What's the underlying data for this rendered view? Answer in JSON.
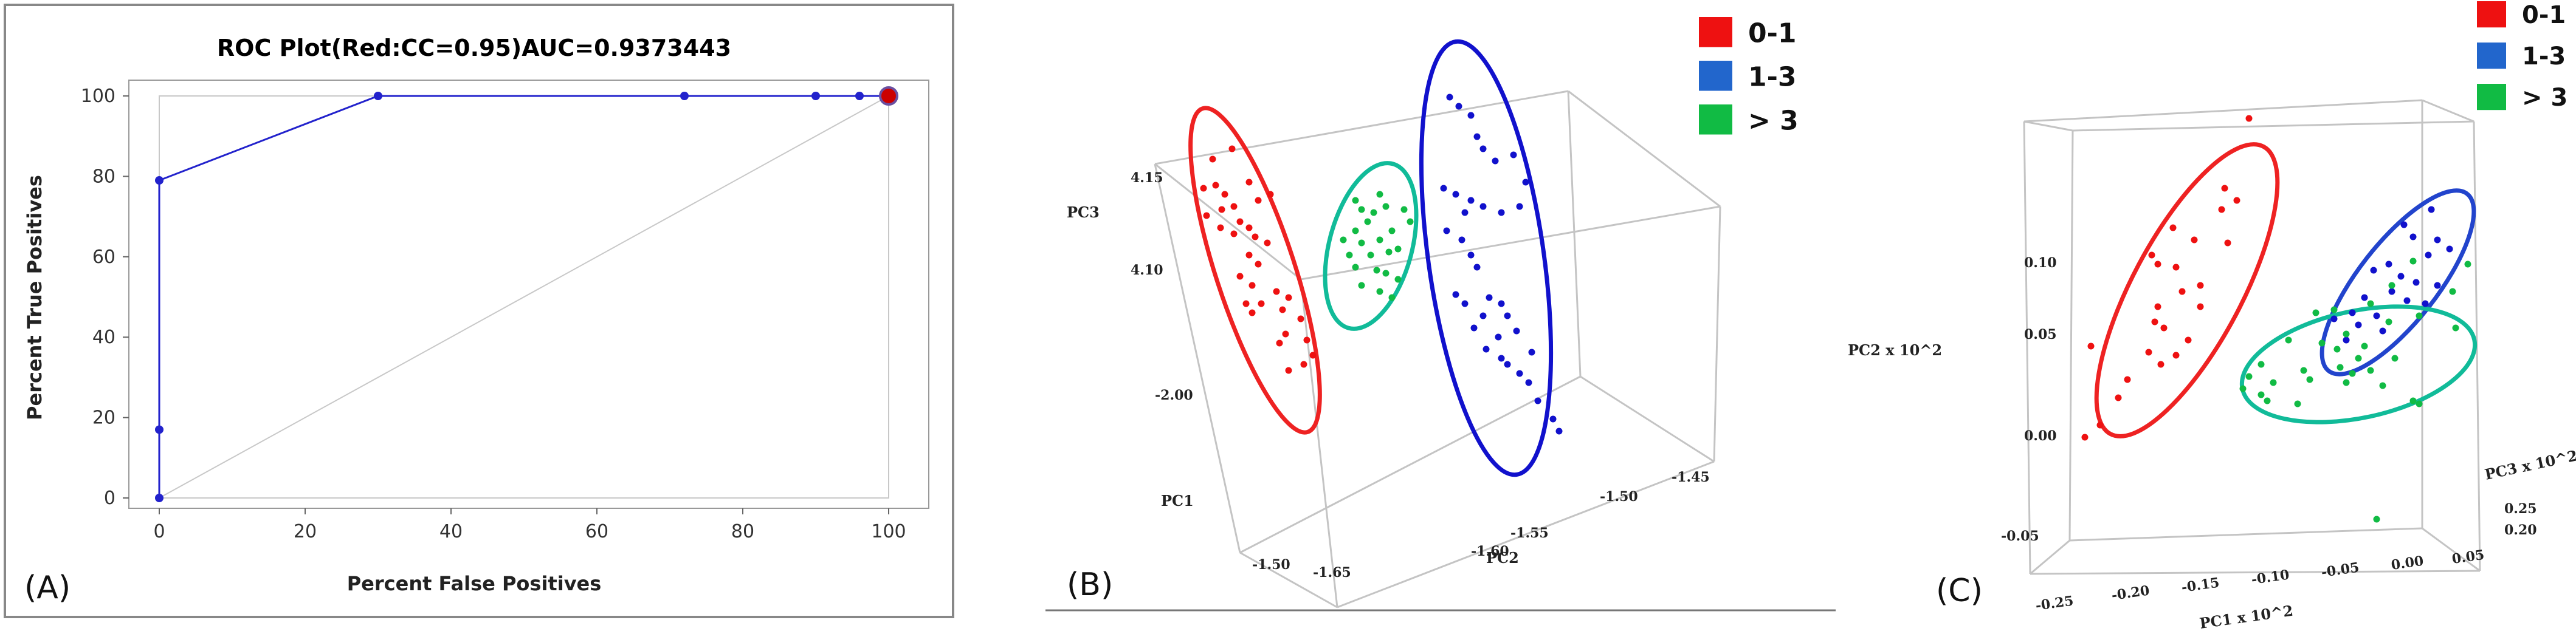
{
  "chart_data": [
    {
      "type": "line",
      "panel_label": "(A)",
      "title": "ROC Plot(Red:CC=0.95)AUC=0.9373443",
      "xlabel": "Percent False Positives",
      "ylabel": "Percent True Positives",
      "xlim": [
        0,
        100
      ],
      "ylim": [
        0,
        100
      ],
      "xticks": [
        "0",
        "20",
        "40",
        "60",
        "80",
        "100"
      ],
      "yticks": [
        "0",
        "20",
        "40",
        "60",
        "80",
        "100"
      ],
      "series": [
        {
          "x": [
            0,
            0,
            0,
            30,
            72,
            90,
            96,
            100
          ],
          "y": [
            0,
            17,
            79,
            100,
            100,
            100,
            100,
            100
          ],
          "color": "#2222cc"
        }
      ],
      "highlight_point": {
        "x": 100,
        "y": 100,
        "color": "#cc0000"
      },
      "diagonal": true
    },
    {
      "type": "scatter",
      "panel_label": "(B)",
      "projection": "3d",
      "axis_labels": {
        "x": "PC1",
        "y": "PC2",
        "z": "PC3"
      },
      "pc1_ticks": [
        "-2.00",
        "-1.50"
      ],
      "pc2_ticks": [
        "-1.65",
        "-1.60",
        "-1.55",
        "-1.50",
        "-1.45"
      ],
      "pc3_ticks": [
        "4.15",
        "4.10"
      ],
      "legend": [
        {
          "label": "0-1",
          "color": "#ee1111"
        },
        {
          "label": "1-3",
          "color": "#2266cc"
        },
        {
          "label": "> 3",
          "color": "#11bb44"
        }
      ],
      "groups": [
        {
          "label": "0-1",
          "color": "#ee1111",
          "points": [
            [
              1995,
              262
            ],
            [
              2027,
              245
            ],
            [
              1980,
              310
            ],
            [
              2000,
              305
            ],
            [
              2015,
              320
            ],
            [
              2055,
              300
            ],
            [
              1985,
              355
            ],
            [
              2010,
              345
            ],
            [
              2030,
              340
            ],
            [
              2070,
              330
            ],
            [
              2090,
              320
            ],
            [
              2040,
              365
            ],
            [
              2055,
              375
            ],
            [
              2008,
              375
            ],
            [
              2030,
              385
            ],
            [
              2065,
              390
            ],
            [
              2085,
              400
            ],
            [
              2055,
              420
            ],
            [
              2070,
              435
            ],
            [
              2040,
              455
            ],
            [
              2060,
              470
            ],
            [
              2100,
              480
            ],
            [
              2120,
              490
            ],
            [
              2075,
              500
            ],
            [
              2110,
              510
            ],
            [
              2050,
              500
            ],
            [
              2060,
              515
            ],
            [
              2140,
              525
            ],
            [
              2115,
              550
            ],
            [
              2150,
              560
            ],
            [
              2105,
              565
            ],
            [
              2160,
              585
            ],
            [
              2145,
              600
            ],
            [
              2120,
              610
            ]
          ]
        },
        {
          "label": "1-3",
          "color": "#1111cc",
          "points": [
            [
              2385,
              160
            ],
            [
              2400,
              175
            ],
            [
              2420,
              190
            ],
            [
              2430,
              225
            ],
            [
              2440,
              245
            ],
            [
              2490,
              255
            ],
            [
              2460,
              265
            ],
            [
              2510,
              300
            ],
            [
              2395,
              320
            ],
            [
              2375,
              310
            ],
            [
              2420,
              330
            ],
            [
              2410,
              350
            ],
            [
              2440,
              340
            ],
            [
              2470,
              350
            ],
            [
              2500,
              340
            ],
            [
              2380,
              380
            ],
            [
              2405,
              395
            ],
            [
              2420,
              420
            ],
            [
              2430,
              440
            ],
            [
              2395,
              485
            ],
            [
              2410,
              500
            ],
            [
              2450,
              490
            ],
            [
              2470,
              500
            ],
            [
              2480,
              520
            ],
            [
              2440,
              520
            ],
            [
              2425,
              540
            ],
            [
              2465,
              555
            ],
            [
              2495,
              545
            ],
            [
              2445,
              575
            ],
            [
              2470,
              590
            ],
            [
              2520,
              580
            ],
            [
              2480,
              600
            ],
            [
              2500,
              615
            ],
            [
              2515,
              630
            ],
            [
              2530,
              660
            ],
            [
              2555,
              690
            ],
            [
              2565,
              710
            ]
          ]
        },
        {
          "label": "> 3",
          "color": "#11bb44",
          "points": [
            [
              2230,
              330
            ],
            [
              2270,
              320
            ],
            [
              2240,
              345
            ],
            [
              2260,
              350
            ],
            [
              2280,
              340
            ],
            [
              2310,
              345
            ],
            [
              2250,
              365
            ],
            [
              2230,
              380
            ],
            [
              2290,
              380
            ],
            [
              2320,
              365
            ],
            [
              2210,
              395
            ],
            [
              2240,
              400
            ],
            [
              2270,
              395
            ],
            [
              2220,
              420
            ],
            [
              2255,
              420
            ],
            [
              2285,
              415
            ],
            [
              2300,
              410
            ],
            [
              2230,
              440
            ],
            [
              2265,
              445
            ],
            [
              2280,
              450
            ],
            [
              2300,
              460
            ],
            [
              2240,
              470
            ],
            [
              2270,
              480
            ],
            [
              2290,
              490
            ]
          ]
        }
      ]
    },
    {
      "type": "scatter",
      "panel_label": "(C)",
      "projection": "3d",
      "axis_labels": {
        "x": "PC1 x 10^2",
        "y": "PC2 x 10^2",
        "z": "PC3 x 10^2"
      },
      "pc1_ticks": [
        "-0.25",
        "-0.20",
        "-0.15",
        "-0.10",
        "-0.05",
        "0.00",
        "0.05"
      ],
      "pc2_ticks": [
        "-0.05",
        "0.00",
        "0.05",
        "0.10"
      ],
      "pc3_ticks": [
        "0.25",
        "0.20"
      ],
      "legend": [
        {
          "label": "0-1",
          "color": "#ee1111"
        },
        {
          "label": "1-3",
          "color": "#2266cc"
        },
        {
          "label": "> 3",
          "color": "#11bb44"
        }
      ],
      "groups": [
        {
          "label": "0-1",
          "color": "#ee1111",
          "points": [
            [
              3700,
              195
            ],
            [
              3660,
              310
            ],
            [
              3680,
              330
            ],
            [
              3655,
              345
            ],
            [
              3575,
              375
            ],
            [
              3610,
              395
            ],
            [
              3665,
              400
            ],
            [
              3540,
              420
            ],
            [
              3550,
              435
            ],
            [
              3580,
              440
            ],
            [
              3590,
              480
            ],
            [
              3620,
              470
            ],
            [
              3620,
              505
            ],
            [
              3550,
              505
            ],
            [
              3545,
              530
            ],
            [
              3560,
              540
            ],
            [
              3535,
              580
            ],
            [
              3500,
              625
            ],
            [
              3555,
              600
            ],
            [
              3580,
              585
            ],
            [
              3600,
              560
            ],
            [
              3485,
              655
            ],
            [
              3455,
              700
            ],
            [
              3430,
              720
            ],
            [
              3440,
              570
            ]
          ]
        },
        {
          "label": "1-3",
          "color": "#1111cc",
          "points": [
            [
              4000,
              345
            ],
            [
              3955,
              370
            ],
            [
              3970,
              390
            ],
            [
              4010,
              395
            ],
            [
              4030,
              410
            ],
            [
              3995,
              420
            ],
            [
              3930,
              435
            ],
            [
              3905,
              445
            ],
            [
              3950,
              455
            ],
            [
              3975,
              465
            ],
            [
              4010,
              470
            ],
            [
              3935,
              480
            ],
            [
              3890,
              490
            ],
            [
              3960,
              495
            ],
            [
              3990,
              500
            ],
            [
              3870,
              515
            ],
            [
              3910,
              520
            ],
            [
              3840,
              525
            ],
            [
              3880,
              535
            ],
            [
              3920,
              545
            ],
            [
              3860,
              560
            ]
          ]
        },
        {
          "label": "> 3",
          "color": "#11bb44",
          "points": [
            [
              3970,
              430
            ],
            [
              4060,
              435
            ],
            [
              3935,
              470
            ],
            [
              4035,
              480
            ],
            [
              3900,
              500
            ],
            [
              3840,
              510
            ],
            [
              3810,
              515
            ],
            [
              3980,
              520
            ],
            [
              3930,
              530
            ],
            [
              4040,
              540
            ],
            [
              3860,
              550
            ],
            [
              3765,
              560
            ],
            [
              3820,
              565
            ],
            [
              3890,
              570
            ],
            [
              3845,
              575
            ],
            [
              3880,
              590
            ],
            [
              3940,
              590
            ],
            [
              3720,
              600
            ],
            [
              3790,
              610
            ],
            [
              3850,
              605
            ],
            [
              3870,
              615
            ],
            [
              3900,
              610
            ],
            [
              3700,
              620
            ],
            [
              3740,
              630
            ],
            [
              3800,
              625
            ],
            [
              3860,
              630
            ],
            [
              3920,
              635
            ],
            [
              3690,
              640
            ],
            [
              3970,
              660
            ],
            [
              3980,
              665
            ],
            [
              3720,
              650
            ],
            [
              3730,
              660
            ],
            [
              3780,
              665
            ],
            [
              3910,
              855
            ]
          ]
        }
      ]
    }
  ]
}
